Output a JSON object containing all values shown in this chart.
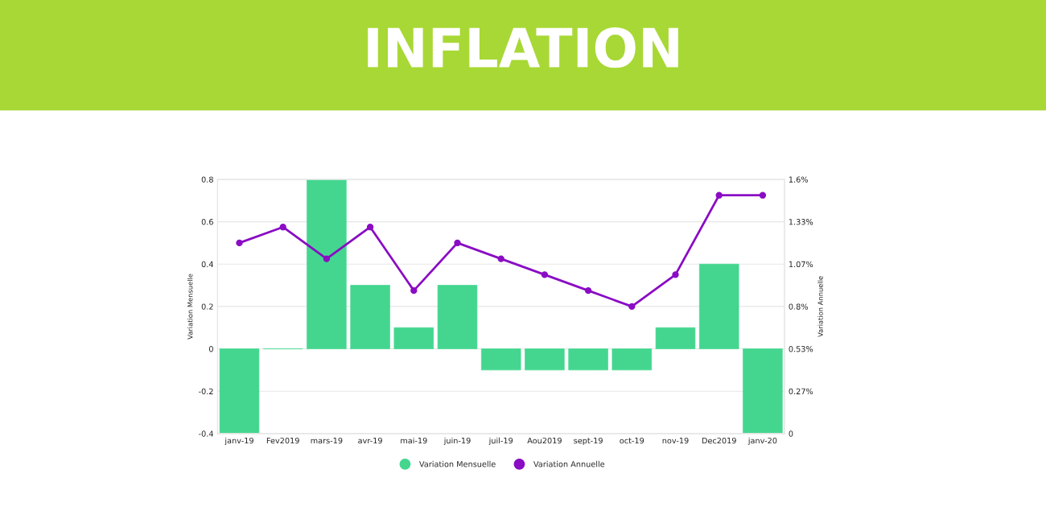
{
  "chart_data": {
    "type": "bar",
    "title": "INFLATION",
    "categories": [
      "janv-19",
      "Fev2019",
      "mars-19",
      "avr-19",
      "mai-19",
      "juin-19",
      "juil-19",
      "Aou2019",
      "sept-19",
      "oct-19",
      "nov-19",
      "Dec2019",
      "janv-20"
    ],
    "series": [
      {
        "name": "Variation Mensuelle",
        "color": "#44d68f",
        "values": [
          -0.4,
          0,
          0.8,
          0.3,
          0.1,
          0.3,
          -0.1,
          -0.1,
          -0.1,
          -0.1,
          0.1,
          0.4,
          -0.4
        ]
      },
      {
        "name": "Variation Annuelle",
        "type": "line",
        "axis": "y2",
        "color": "#8a0cc4",
        "marker": "circle",
        "values": [
          1.2,
          1.3,
          1.1,
          1.3,
          0.9,
          1.2,
          1.1,
          1.0,
          0.9,
          0.8,
          1.0,
          1.5,
          1.5
        ]
      }
    ],
    "ylabel": "Variation Mensuelle",
    "y2label": "Variation Annuelle",
    "ylim": [
      -0.4,
      0.8
    ],
    "yticks": [
      -0.4,
      -0.2,
      0,
      0.2,
      0.4,
      0.6,
      0.8
    ],
    "y2lim": [
      0,
      1.6
    ],
    "y2ticks": [
      0,
      {
        "value": 0.2667,
        "label": "0.27%"
      },
      {
        "value": 0.5333,
        "label": "0.53%"
      },
      {
        "value": 0.8,
        "label": "0.8%"
      },
      {
        "value": 1.0667,
        "label": "1.07%"
      },
      {
        "value": 1.3333,
        "label": "1.33%"
      },
      {
        "value": 1.6,
        "label": "1.6%"
      }
    ],
    "grid": "y",
    "legend": "bottom"
  }
}
